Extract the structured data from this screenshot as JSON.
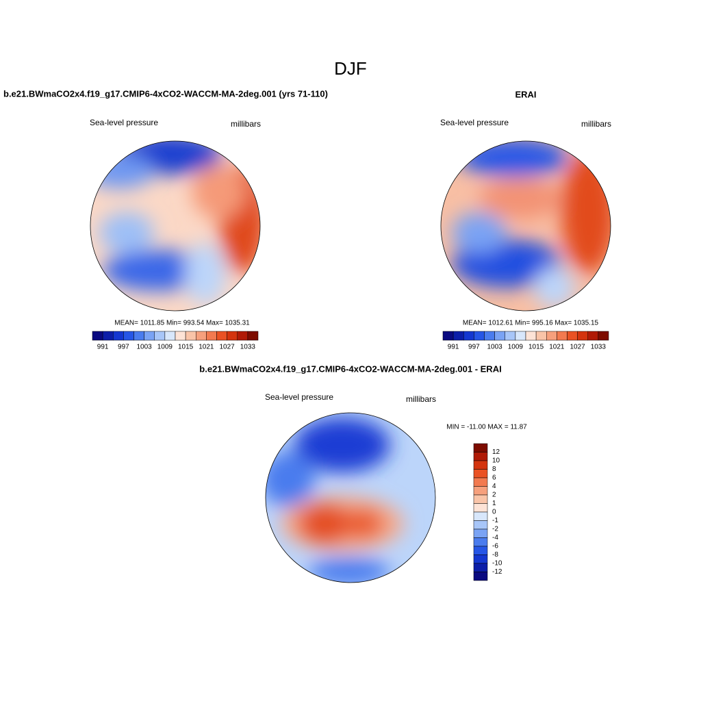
{
  "title": "DJF",
  "panels": [
    {
      "title": "b.e21.BWmaCO2x4.f19_g17.CMIP6-4xCO2-WACCM-MA-2deg.001 (yrs 71-110)",
      "left_label": "Sea-level pressure",
      "right_label": "millibars",
      "stats": "MEAN= 1011.85  Min= 993.54  Max= 1035.31"
    },
    {
      "title": "ERAI",
      "left_label": "Sea-level pressure",
      "right_label": "millibars",
      "stats": "MEAN= 1012.61  Min= 995.16  Max= 1035.15"
    },
    {
      "title": "b.e21.BWmaCO2x4.f19_g17.CMIP6-4xCO2-WACCM-MA-2deg.001 - ERAI",
      "left_label": "Sea-level pressure",
      "right_label": "millibars",
      "stats": "MIN = -11.00 MAX =  11.87"
    }
  ],
  "colorbar": {
    "colors": [
      "#0a0a80",
      "#0c1ea8",
      "#1437d0",
      "#2656e6",
      "#4a7cee",
      "#7aa3f4",
      "#a8c6f8",
      "#d8e7fb",
      "#fde3d6",
      "#f9c4a8",
      "#f6a07d",
      "#f27a50",
      "#ea5224",
      "#d4340e",
      "#b01a06",
      "#7d0c00"
    ],
    "labels": [
      "991",
      "997",
      "1003",
      "1009",
      "1015",
      "1021",
      "1027",
      "1033"
    ]
  },
  "diff_colorbar": {
    "colors": [
      "#7d0c00",
      "#b01a06",
      "#d4340e",
      "#ea5224",
      "#f27a50",
      "#f6a07d",
      "#f9c4a8",
      "#fde3d6",
      "#d8e7fb",
      "#a8c6f8",
      "#7aa3f4",
      "#4a7cee",
      "#2656e6",
      "#1437d0",
      "#0c1ea8",
      "#0a0a80"
    ],
    "labels": [
      "12",
      "10",
      "8",
      "6",
      "4",
      "2",
      "1",
      "0",
      "-1",
      "-2",
      "-4",
      "-6",
      "-8",
      "-10",
      "-12"
    ]
  }
}
